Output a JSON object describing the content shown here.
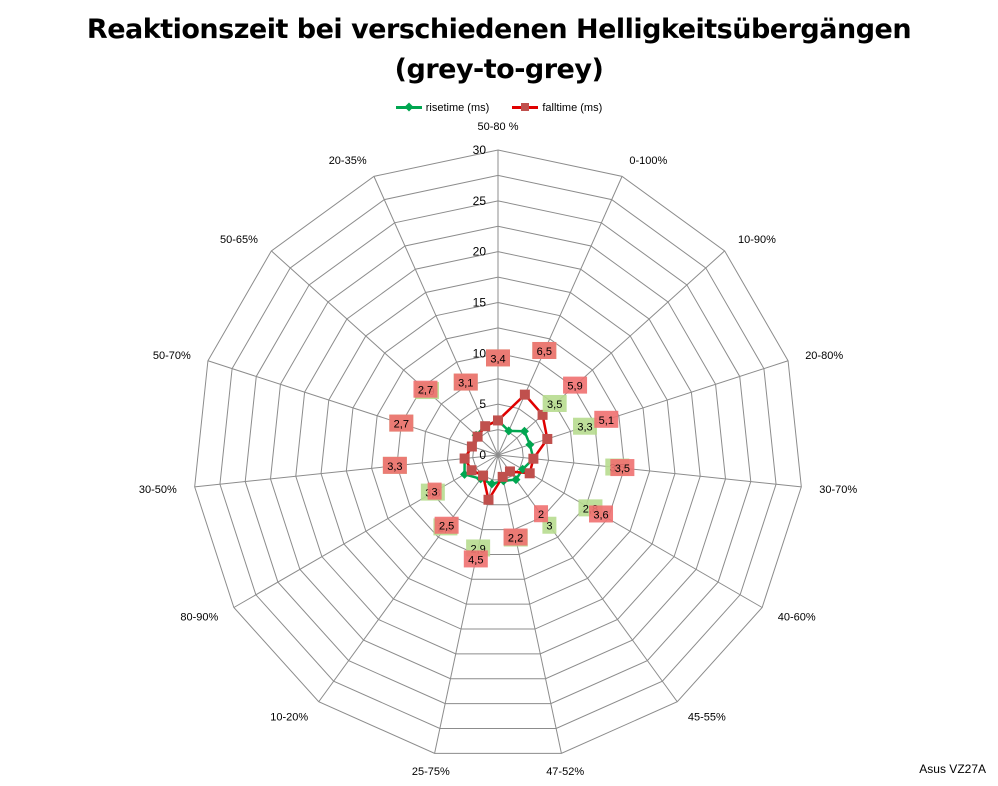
{
  "title_line1": "Reaktionszeit bei verschiedenen Helligkeitsübergängen",
  "title_line2": "(grey-to-grey)",
  "watermark": "Asus VZ27A",
  "colors": {
    "rise_line": "#00a650",
    "rise_marker": "#00a650",
    "rise_label_bg": "#b7dc8f",
    "fall_line": "#e00000",
    "fall_marker": "#c0504d",
    "fall_label_bg": "#f07070",
    "grid": "#8c8c8c"
  },
  "chart_data": {
    "type": "radar",
    "title": "Reaktionszeit bei verschiedenen Helligkeitsübergängen (grey-to-grey)",
    "categories": [
      "50-80 %",
      "0-100%",
      "10-90%",
      "20-80%",
      "30-70%",
      "40-60%",
      "45-55%",
      "47-52%",
      "25-75%",
      "10-20%",
      "80-90%",
      "30-50%",
      "50-70%",
      "50-65%",
      "20-35%"
    ],
    "rlim": [
      0,
      30
    ],
    "rticks": [
      0,
      5,
      10,
      15,
      20,
      25,
      30
    ],
    "legend_position": "top",
    "grid": true,
    "series": [
      {
        "name": "risetime (ms)",
        "values": [
          3.4,
          2.6,
          3.5,
          3.3,
          3.5,
          2.8,
          3.0,
          2.6,
          2.9,
          2.9,
          3.8,
          3.3,
          2.7,
          2.9,
          3.1
        ],
        "labels": [
          "3,4",
          "2,6",
          "3,5",
          "3,3",
          "3,5",
          "2,8",
          "3",
          "2,6",
          "2,9",
          "2,9",
          "3,8",
          "3,3",
          "2,7",
          "2,9",
          "3,1"
        ]
      },
      {
        "name": "falltime (ms)",
        "values": [
          3.4,
          6.5,
          5.9,
          5.1,
          3.5,
          3.6,
          2.0,
          2.2,
          4.5,
          2.5,
          3.0,
          3.3,
          2.7,
          2.7,
          3.1
        ],
        "labels": [
          "3,4",
          "6,5",
          "5,9",
          "5,1",
          "3,5",
          "3,6",
          "2",
          "2,2",
          "4,5",
          "2,5",
          "3",
          "3,3",
          "2,7",
          "2,7",
          "3,1"
        ]
      }
    ]
  }
}
